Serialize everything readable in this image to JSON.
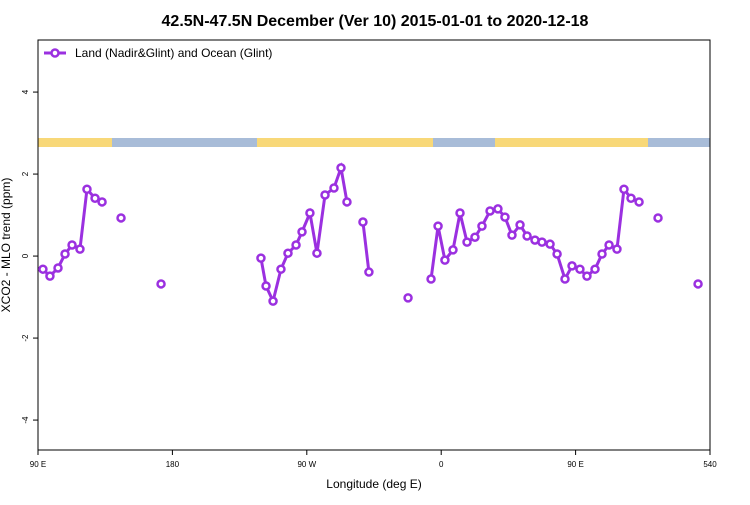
{
  "chart_data": {
    "type": "line",
    "title": "42.5N-47.5N December (Ver 10)   2015-01-01 to 2020-12-18",
    "x_label": "Longitude (deg E)",
    "y_label": "XCO2 - MLO trend (ppm)",
    "xlim": [
      90,
      540
    ],
    "xticks": [
      {
        "value": 90,
        "label": "90 E"
      },
      180,
      {
        "value": 270,
        "label": "90 W"
      },
      {
        "value": 360,
        "label": "0"
      },
      {
        "value": 450,
        "label": "90 E"
      },
      540
    ],
    "ylim": [
      -4.73,
      5.27
    ],
    "yticks": [
      -4,
      -2,
      0,
      2,
      4
    ],
    "legend": "top-left",
    "x": [
      93.3,
      98.0,
      103.4,
      108.1,
      112.8,
      118.1,
      122.8,
      128.2,
      132.9,
      139,
      145.6,
      159,
      172.4,
      206,
      239.3,
      242.7,
      247.4,
      252.7,
      257.4,
      262.8,
      266.8,
      272.1,
      276.8,
      282.2,
      288.2,
      292.9,
      296.9,
      302,
      307.6,
      311.6,
      325,
      337.8,
      345,
      353.2,
      357.9,
      362.5,
      367.9,
      372.6,
      377.3,
      382.6,
      387.3,
      392.7,
      398.0,
      402.7,
      407.4,
      412.8,
      417.5,
      422.8,
      427.5,
      432.9,
      437.6,
      442.9,
      447.6,
      452.9,
      457.6,
      463.0,
      467.7,
      472.4,
      477.7,
      482.4,
      487.1,
      492.5,
      499,
      505.2,
      518,
      532.0
    ],
    "series": [
      {
        "name": "Land (Nadir&Glint) and Ocean (Glint)",
        "color": "#9b30e0",
        "values": [
          -0.32,
          -0.49,
          -0.29,
          0.05,
          0.27,
          0.17,
          1.63,
          1.41,
          1.32,
          null,
          0.93,
          null,
          -0.68,
          null,
          -0.05,
          -0.73,
          -1.1,
          -0.32,
          0.07,
          0.27,
          0.59,
          1.05,
          0.07,
          1.49,
          1.66,
          2.15,
          1.32,
          null,
          0.83,
          -0.39,
          null,
          -1.02,
          null,
          -0.56,
          0.73,
          -0.1,
          0.15,
          1.05,
          0.34,
          0.46,
          0.73,
          1.1,
          1.15,
          0.95,
          0.51,
          0.76,
          0.49,
          0.39,
          0.34,
          0.29,
          0.05,
          -0.56,
          -0.24,
          -0.32,
          -0.49,
          -0.32,
          0.05,
          0.27,
          0.17,
          1.63,
          1.41,
          1.32,
          null,
          0.93,
          null,
          -0.68
        ]
      }
    ]
  }
}
